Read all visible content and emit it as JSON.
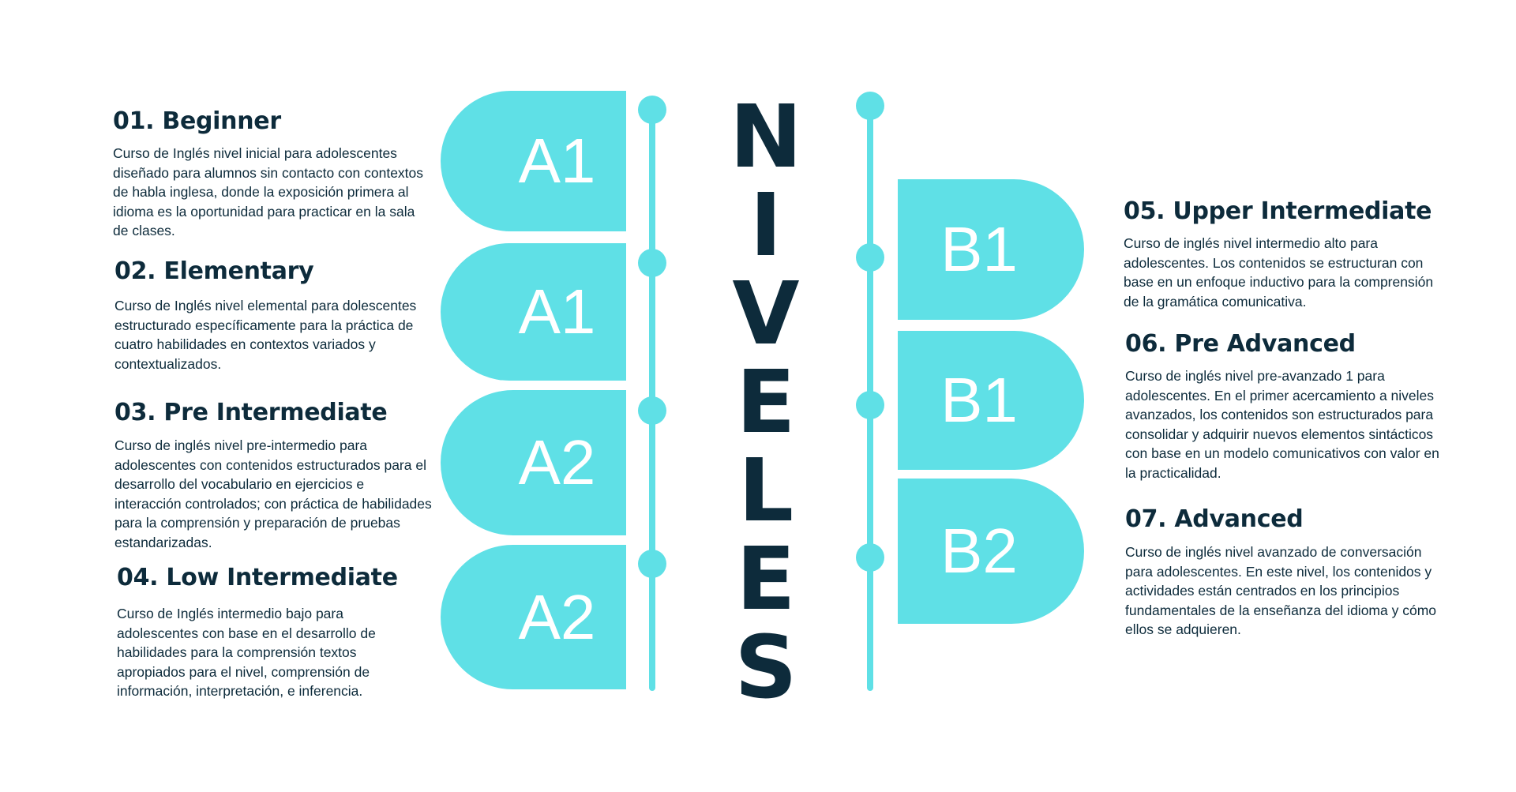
{
  "heading_letters": [
    "N",
    "I",
    "V",
    "E",
    "L",
    "E",
    "S"
  ],
  "levels": [
    {
      "title": "01. Beginner",
      "description": "Curso de Inglés nivel inicial para adolescentes diseñado para alumnos sin contacto con contextos de habla inglesa, donde la exposición primera al idioma es la oportunidad para practicar en la sala de clases.",
      "badge": "A1"
    },
    {
      "title": "02. Elementary",
      "description": "Curso de Inglés nivel elemental para dolescentes estructurado específicamente para la práctica de cuatro habilidades en contextos variados y contextualizados.",
      "badge": "A1"
    },
    {
      "title": "03. Pre Intermediate",
      "description": "Curso de inglés nivel pre-intermedio para adolescentes con contenidos estructurados para el desarrollo del vocabulario en ejercicios e interacción controlados; con práctica de habilidades para la comprensión y preparación de pruebas estandarizadas.",
      "badge": "A2"
    },
    {
      "title": "04. Low Intermediate",
      "description": "Curso de Inglés intermedio bajo para adolescentes con base en el desarrollo de habilidades para la comprensión textos apropiados para el nivel, comprensión de información, interpretación, e inferencia.",
      "badge": "A2"
    },
    {
      "title": "05. Upper Intermediate",
      "description": "Curso de inglés nivel intermedio alto para adolescentes. Los contenidos se estructuran con base en un enfoque inductivo para la comprensión de la gramática comunicativa.",
      "badge": "B1"
    },
    {
      "title": "06. Pre Advanced",
      "description": "Curso de inglés nivel pre-avanzado 1 para adolescentes. En el primer acercamiento a niveles avanzados, los contenidos son estructurados para consolidar y adquirir nuevos elementos sintácticos con base en un modelo comunicativos con valor en la practicalidad.",
      "badge": "B1"
    },
    {
      "title": "07. Advanced",
      "description": "Curso de inglés nivel avanzado de conversación para adolescentes. En este nivel, los contenidos y actividades están centrados en los principios fundamentales de la enseñanza del idioma y cómo ellos se adquieren.",
      "badge": "B2"
    }
  ],
  "colors": {
    "accent": "#5fe0e6",
    "text": "#0d2b3b",
    "background": "#ffffff"
  }
}
